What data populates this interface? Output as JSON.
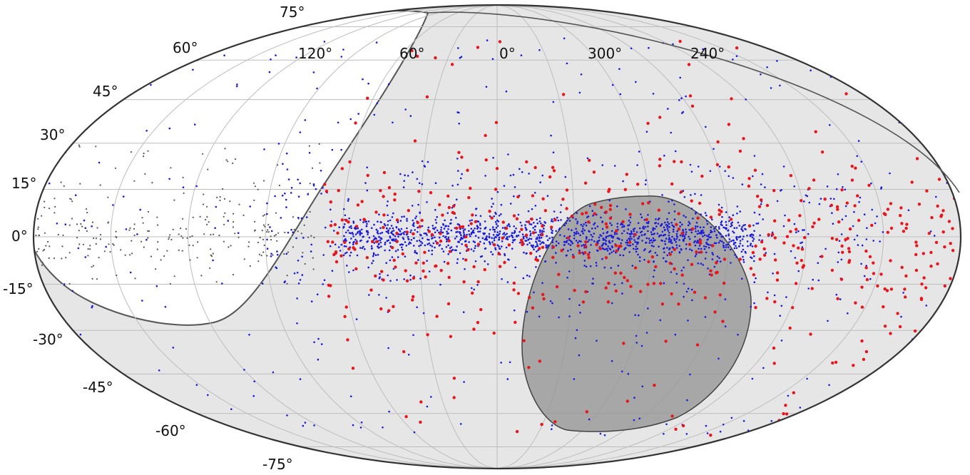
{
  "chart_data": {
    "type": "scatter",
    "projection": "mollweide",
    "title": "",
    "grid": true,
    "colors": {
      "background_sky": "#e6e6e6",
      "exclusion_region": "#ffffff",
      "shaded_region": "#999999",
      "series_blue": "#1a1adc",
      "series_red": "#e8161c",
      "series_grey": "#555555"
    },
    "latitude_ticks": [
      "75°",
      "60°",
      "45°",
      "30°",
      "15°",
      "0°",
      "-15°",
      "-30°",
      "-45°",
      "-60°",
      "-75°"
    ],
    "longitude_ticks": [
      "120°",
      "60°",
      "0°",
      "300°",
      "240°"
    ],
    "regions": [
      {
        "name": "exclusion-region",
        "fill": "#ffffff",
        "approx_center_lon_deg": 100,
        "approx_center_lat_deg": 20
      },
      {
        "name": "shaded-region",
        "fill": "#999999",
        "approx_center_lon_deg": 300,
        "approx_center_lat_deg": -20
      }
    ],
    "series": [
      {
        "color": "#1a1adc",
        "count_approx": 1900,
        "distribution": "concentrated along the galactic plane (lat ≈ 0°) between lon ≈ 90° and 200°, sparser elsewhere"
      },
      {
        "color": "#e8161c",
        "count_approx": 520,
        "distribution": "spread across the sky with concentration within |lat| < 30°"
      },
      {
        "color": "#555555",
        "count_approx": 260,
        "distribution": "inside the white exclusion region near lon 70°–180°, lat -15°–30°"
      }
    ]
  }
}
